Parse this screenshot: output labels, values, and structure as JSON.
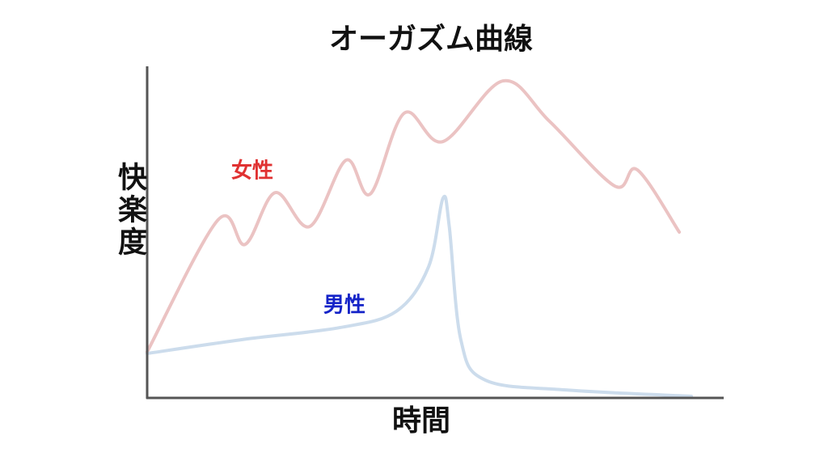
{
  "chart_data": {
    "type": "line",
    "title": "オーガズム曲線",
    "x_label": "時間",
    "y_label": "快楽度",
    "xlim": [
      0,
      100
    ],
    "ylim": [
      0,
      100
    ],
    "series": [
      {
        "name": "女性",
        "color": "#ebc3c3",
        "x": [
          0,
          12.3,
          17,
          22.2,
          28.2,
          34.5,
          38.7,
          44.6,
          51.3,
          61.7,
          69.8,
          81.1,
          85,
          92.3
        ],
        "values": [
          13.9,
          53.7,
          46.3,
          61.9,
          51.7,
          71.7,
          61.5,
          85.9,
          77.3,
          95.6,
          83.4,
          63.9,
          68.8,
          50
        ]
      },
      {
        "name": "男性",
        "color": "#ccdcec",
        "x": [
          0,
          16.5,
          33.4,
          43.2,
          48.8,
          51.3,
          52.4,
          54.4,
          58.6,
          72.6,
          94.4
        ],
        "values": [
          13.4,
          17.6,
          21.2,
          26.1,
          39.5,
          60.2,
          51.7,
          17.6,
          5.4,
          2.4,
          0.5
        ]
      }
    ]
  }
}
